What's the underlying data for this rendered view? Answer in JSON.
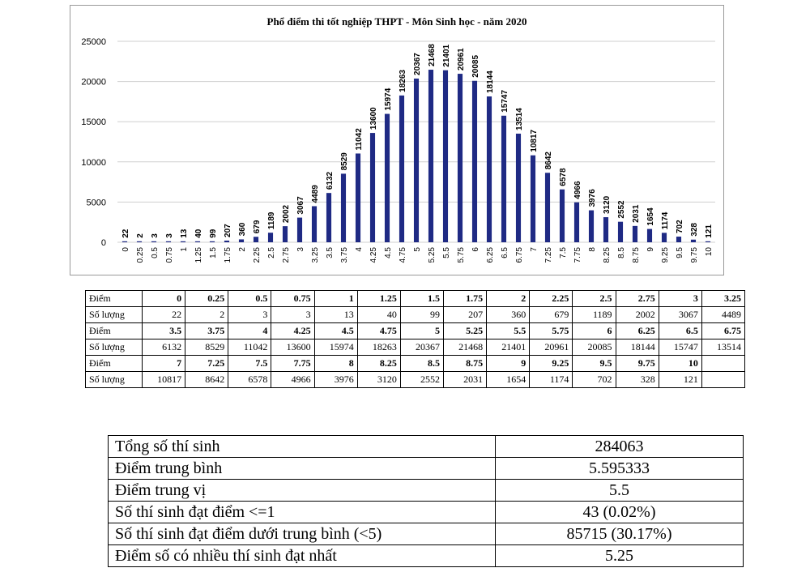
{
  "chart_data": {
    "type": "bar",
    "title": "Phổ điểm thi tốt nghiệp THPT - Môn Sinh học - năm 2020",
    "categories": [
      "0",
      "0.25",
      "0.5",
      "0.75",
      "1",
      "1.25",
      "1.5",
      "1.75",
      "2",
      "2.25",
      "2.5",
      "2.75",
      "3",
      "3.25",
      "3.5",
      "3.75",
      "4",
      "4.25",
      "4.5",
      "4.75",
      "5",
      "5.25",
      "5.5",
      "5.75",
      "6",
      "6.25",
      "6.5",
      "6.75",
      "7",
      "7.25",
      "7.5",
      "7.75",
      "8",
      "8.25",
      "8.5",
      "8.75",
      "9",
      "9.25",
      "9.5",
      "9.75",
      "10"
    ],
    "values": [
      22,
      2,
      3,
      3,
      13,
      40,
      99,
      207,
      360,
      679,
      1189,
      2002,
      3067,
      4489,
      6132,
      8529,
      11042,
      13600,
      15974,
      18263,
      20367,
      21468,
      21401,
      20961,
      20085,
      18144,
      15747,
      13514,
      10817,
      8642,
      6578,
      4966,
      3976,
      3120,
      2552,
      2031,
      1654,
      1174,
      702,
      328,
      121
    ],
    "ylim": [
      0,
      25000
    ],
    "yticks": [
      0,
      5000,
      10000,
      15000,
      20000,
      25000
    ],
    "grid": true,
    "bar_color": "#1f2a84",
    "grid_color": "#cfcfcf"
  },
  "table": {
    "rows": [
      {
        "label": "Điểm",
        "kind": "score",
        "cells": [
          "0",
          "0.25",
          "0.5",
          "0.75",
          "1",
          "1.25",
          "1.5",
          "1.75",
          "2",
          "2.25",
          "2.5",
          "2.75",
          "3",
          "3.25"
        ]
      },
      {
        "label": "Số lượng",
        "kind": "count",
        "cells": [
          "22",
          "2",
          "3",
          "3",
          "13",
          "40",
          "99",
          "207",
          "360",
          "679",
          "1189",
          "2002",
          "3067",
          "4489"
        ]
      },
      {
        "label": "Điểm",
        "kind": "score",
        "cells": [
          "3.5",
          "3.75",
          "4",
          "4.25",
          "4.5",
          "4.75",
          "5",
          "5.25",
          "5.5",
          "5.75",
          "6",
          "6.25",
          "6.5",
          "6.75"
        ]
      },
      {
        "label": "Số lượng",
        "kind": "count",
        "cells": [
          "6132",
          "8529",
          "11042",
          "13600",
          "15974",
          "18263",
          "20367",
          "21468",
          "21401",
          "20961",
          "20085",
          "18144",
          "15747",
          "13514"
        ]
      },
      {
        "label": "Điểm",
        "kind": "score",
        "cells": [
          "7",
          "7.25",
          "7.5",
          "7.75",
          "8",
          "8.25",
          "8.5",
          "8.75",
          "9",
          "9.25",
          "9.5",
          "9.75",
          "10",
          ""
        ]
      },
      {
        "label": "Số lượng",
        "kind": "count",
        "cells": [
          "10817",
          "8642",
          "6578",
          "4966",
          "3976",
          "3120",
          "2552",
          "2031",
          "1654",
          "1174",
          "702",
          "328",
          "121",
          ""
        ]
      }
    ]
  },
  "summary": [
    {
      "label": "Tổng số thí sinh",
      "value": "284063"
    },
    {
      "label": "Điểm trung bình",
      "value": "5.595333"
    },
    {
      "label": "Điểm trung vị",
      "value": "5.5"
    },
    {
      "label": "Số thí sinh đạt điểm <=1",
      "value": "43 (0.02%)"
    },
    {
      "label": "Số thí sinh đạt điểm dưới trung bình (<5)",
      "value": "85715 (30.17%)"
    },
    {
      "label": "Điểm số có nhiều thí sinh đạt nhất",
      "value": "5.25"
    }
  ]
}
